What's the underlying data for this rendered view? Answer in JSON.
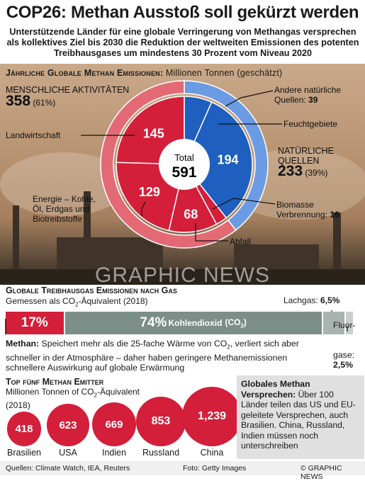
{
  "title": "COP26: Methan Ausstoß soll gekürzt werden",
  "subtitle": "Unterstützende Länder für eine globale Verringerung von Methangas versprechen als kollektives Ziel bis 2030 die Reduktion der weltweiten Emissionen des potenten Treibhausgases  um mindestens 30 Prozent vom Niveau 2020",
  "section1": {
    "title": "Jährliche Globale Methan Emissionen:",
    "title_unit": "Millionen Tonnen (geschätzt)",
    "human_label": "MENSCHLICHE AKTIVITÄTEN",
    "human_value": "358",
    "human_pct": "(61%)",
    "natural_label_1": "NATÜRLICHE",
    "natural_label_2": "QUELLEN",
    "natural_value": "233",
    "natural_pct": "(39%)",
    "total_label": "Total",
    "total_value": "591",
    "labels": {
      "landwirtschaft": "Landwirtschaft",
      "energie_1": "Energie – Kohle,",
      "energie_2": "Öl, Erdgas und",
      "energie_3": "Biotreibstoffe",
      "abfall": "Abfall",
      "andere_1": "Andere natürliche",
      "andere_2": "Quellen:",
      "andere_val": "39",
      "feucht": "Feuchtgebiete",
      "bio_1": "Biomasse",
      "bio_2": "Verbrennung:",
      "bio_val": "16"
    },
    "watermark": "GRAPHIC NEWS"
  },
  "chart_data": [
    {
      "type": "pie",
      "title": "Jährliche Globale Methan Emissionen: Millionen Tonnen (geschätzt)",
      "total": 591,
      "inner_ring": [
        {
          "name": "Landwirtschaft",
          "value": 145,
          "color": "#d31f3a"
        },
        {
          "name": "Energie – Kohle, Öl, Erdgas und Biotreibstoffe",
          "value": 129,
          "color": "#d31f3a"
        },
        {
          "name": "Abfall",
          "value": 68,
          "color": "#d31f3a"
        },
        {
          "name": "Biomasse Verbrennung",
          "value": 16,
          "color": "#d31f3a"
        },
        {
          "name": "Andere natürliche Quellen",
          "value": 39,
          "color": "#1e5fbf"
        },
        {
          "name": "Feuchtgebiete",
          "value": 194,
          "color": "#1e5fbf"
        }
      ],
      "outer_ring": [
        {
          "name": "MENSCHLICHE AKTIVITÄTEN",
          "value": 358,
          "pct": 61,
          "color": "#e36a74"
        },
        {
          "name": "NATÜRLICHE QUELLEN",
          "value": 233,
          "pct": 39,
          "color": "#6b9be3"
        }
      ]
    },
    {
      "type": "bar",
      "title": "Globale Treibhausgas Emissionen nach Gas",
      "subtitle": "Gemessen als CO2-Äquivalent (2018)",
      "stacked": true,
      "segments": [
        {
          "name": "Methan",
          "value": 17,
          "label": "17%",
          "color": "#d31f3a"
        },
        {
          "name": "Kohlendioxid (CO2)",
          "value": 74,
          "label": "74%",
          "color": "#7c8e88"
        },
        {
          "name": "Lachgas",
          "value": 6.5,
          "label": "6,5%",
          "color": "#a9b4b0"
        },
        {
          "name": "Fluorgase",
          "value": 2.5,
          "label": "2,5%",
          "color": "#c9cfcc"
        }
      ]
    },
    {
      "type": "bar",
      "title": "Top fünf Methan Emitter",
      "subtitle": "Millionen Tonnen of CO2-Äquivalent (2018)",
      "categories": [
        "Brasilien",
        "USA",
        "Indien",
        "Russland",
        "China"
      ],
      "values": [
        418,
        623,
        669,
        853,
        1239
      ],
      "value_labels": [
        "418",
        "623",
        "669",
        "853",
        "1,239"
      ]
    }
  ],
  "section2": {
    "title": "Globale Treibhausgas Emissionen nach Gas",
    "sub_a": "Gemessen als CO",
    "sub_sub": "2",
    "sub_b": "-Äquivalent (2018)",
    "lachgas": "Lachgas:",
    "lachgas_val": "6,5%",
    "fluor_1": "Fluor-",
    "fluor_2": "gase:",
    "fluor_val": "2,5%",
    "methan_pct": "17%",
    "co2_pct": "74%",
    "co2_label": "Kohlendioxid",
    "co2_paren_a": "(CO",
    "co2_paren_sub": "2",
    "co2_paren_b": ")",
    "note_bold": "Methan:",
    "note_a": " Speichert mehr als die 25-fache Wärme von CO",
    "note_sub": "2",
    "note_b": ", verliert sich aber schneller in der Atmosphäre – daher haben geringere Methanemissionen schnellere Auswirkung auf globale Erwärmung"
  },
  "section3": {
    "title": "Top fünf Methan Emitter",
    "sub_a": "Millionen Tonnen of CO",
    "sub_sub": "2",
    "sub_b": "-Äquivalent (2018)"
  },
  "pledge": {
    "bold": "Globales Methan Versprechen:",
    "text": " Über 100 Länder teilen das US und EU-geleitete Versprechen, auch Brasilien. China, Russland, Indien müssen noch unterschreiben"
  },
  "footer": {
    "sources": "Quellen: Climate Watch, IEA, Reuters",
    "photo": "Foto: Getty Images",
    "copyright": "© GRAPHIC NEWS"
  }
}
